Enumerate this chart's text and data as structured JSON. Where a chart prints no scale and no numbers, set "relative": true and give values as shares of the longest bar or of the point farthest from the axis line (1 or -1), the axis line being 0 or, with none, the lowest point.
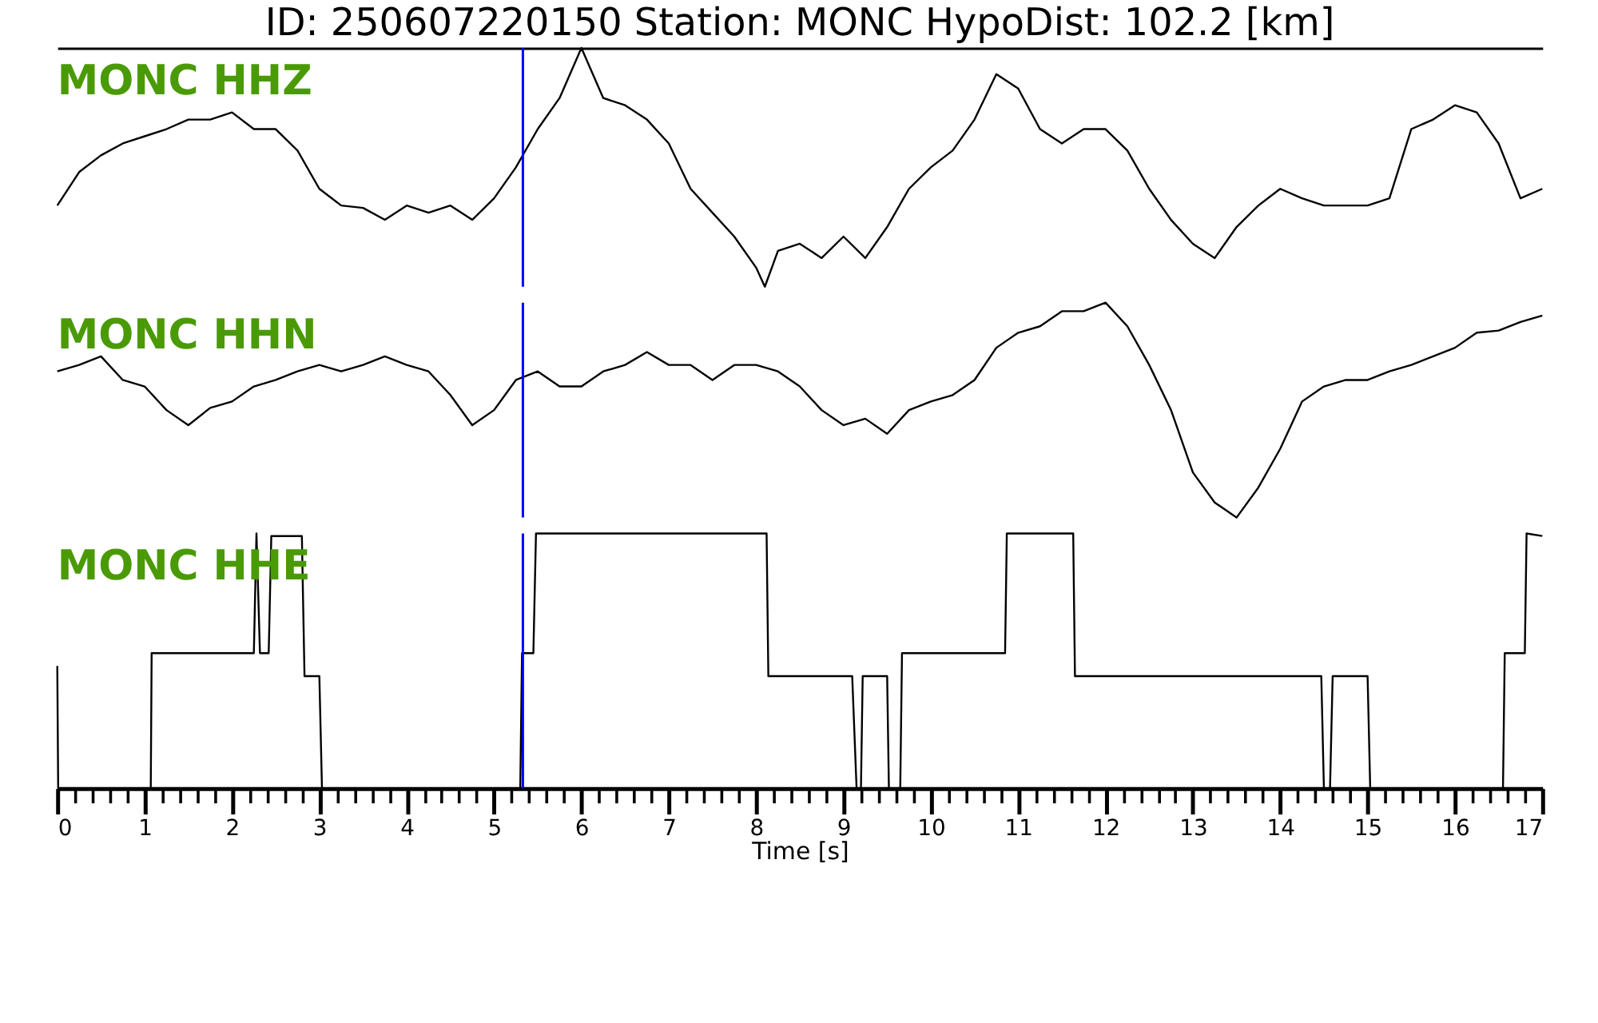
{
  "chart_data": [
    {
      "type": "line",
      "title": "ID: 250607220150   Station: MONC   HypoDist:   102.2 [km]",
      "relative": true,
      "xlim": [
        0,
        17
      ],
      "tick_labels": false,
      "grid": false,
      "series": [
        {
          "name": "MONC HHZ",
          "color": "#000000",
          "x": [
            0,
            0.25,
            0.5,
            0.75,
            1,
            1.25,
            1.5,
            1.75,
            2,
            2.25,
            2.5,
            2.75,
            3,
            3.25,
            3.5,
            3.75,
            4,
            4.25,
            4.5,
            4.75,
            5,
            5.25,
            5.5,
            5.75,
            6,
            6.25,
            6.5,
            6.75,
            7,
            7.25,
            7.5,
            7.75,
            8,
            8.1,
            8.25,
            8.5,
            8.75,
            9,
            9.25,
            9.5,
            9.75,
            10,
            10.25,
            10.5,
            10.75,
            11,
            11.25,
            11.5,
            11.75,
            12,
            12.25,
            12.5,
            12.75,
            13,
            13.25,
            13.5,
            13.75,
            14,
            14.25,
            14.5,
            14.75,
            15,
            15.25,
            15.5,
            15.75,
            16,
            16.25,
            16.5,
            16.75,
            17
          ],
          "values": [
            0.34,
            0.48,
            0.55,
            0.6,
            0.63,
            0.66,
            0.7,
            0.7,
            0.73,
            0.66,
            0.66,
            0.57,
            0.41,
            0.34,
            0.33,
            0.28,
            0.34,
            0.31,
            0.34,
            0.28,
            0.37,
            0.5,
            0.66,
            0.79,
            1.0,
            0.79,
            0.76,
            0.7,
            0.6,
            0.41,
            0.31,
            0.21,
            0.08,
            0,
            0.15,
            0.18,
            0.12,
            0.21,
            0.12,
            0.25,
            0.41,
            0.5,
            0.57,
            0.7,
            0.89,
            0.83,
            0.66,
            0.6,
            0.66,
            0.66,
            0.57,
            0.41,
            0.28,
            0.18,
            0.12,
            0.25,
            0.34,
            0.41,
            0.37,
            0.34,
            0.34,
            0.34,
            0.37,
            0.66,
            0.7,
            0.76,
            0.73,
            0.6,
            0.37,
            0.41
          ]
        }
      ],
      "ref_lines": [
        {
          "axis": "x",
          "value": 5.33,
          "color": "#0000ff"
        }
      ]
    },
    {
      "type": "line",
      "relative": true,
      "xlim": [
        0,
        17
      ],
      "tick_labels": false,
      "grid": false,
      "series": [
        {
          "name": "MONC HHN",
          "color": "#000000",
          "x": [
            0,
            0.25,
            0.5,
            0.75,
            1,
            1.25,
            1.5,
            1.75,
            2,
            2.25,
            2.5,
            2.75,
            3,
            3.25,
            3.5,
            3.75,
            4,
            4.25,
            4.5,
            4.75,
            5,
            5.25,
            5.5,
            5.75,
            6,
            6.25,
            6.5,
            6.75,
            7,
            7.25,
            7.5,
            7.75,
            8,
            8.25,
            8.5,
            8.75,
            9,
            9.25,
            9.5,
            9.75,
            10,
            10.25,
            10.5,
            10.75,
            11,
            11.25,
            11.5,
            11.75,
            12,
            12.25,
            12.5,
            12.75,
            13,
            13.25,
            13.5,
            13.75,
            14,
            14.25,
            14.5,
            14.75,
            15,
            15.25,
            15.5,
            15.75,
            16,
            16.25,
            16.5,
            16.75,
            17
          ],
          "values": [
            0.68,
            0.71,
            0.75,
            0.64,
            0.61,
            0.5,
            0.43,
            0.51,
            0.54,
            0.61,
            0.64,
            0.68,
            0.71,
            0.68,
            0.71,
            0.75,
            0.71,
            0.68,
            0.57,
            0.43,
            0.5,
            0.64,
            0.68,
            0.61,
            0.61,
            0.68,
            0.71,
            0.77,
            0.71,
            0.71,
            0.64,
            0.71,
            0.71,
            0.68,
            0.61,
            0.5,
            0.43,
            0.46,
            0.39,
            0.5,
            0.54,
            0.57,
            0.64,
            0.79,
            0.86,
            0.89,
            0.96,
            0.96,
            1.0,
            0.89,
            0.71,
            0.5,
            0.21,
            0.07,
            0,
            0.14,
            0.32,
            0.54,
            0.61,
            0.64,
            0.64,
            0.68,
            0.71,
            0.75,
            0.79,
            0.86,
            0.87,
            0.91,
            0.94
          ]
        }
      ],
      "ref_lines": [
        {
          "axis": "x",
          "value": 5.33,
          "color": "#0000ff"
        }
      ]
    },
    {
      "type": "line",
      "relative": true,
      "xlim": [
        0,
        17
      ],
      "tick_labels": "x",
      "grid": false,
      "xlabel": "Time [s]",
      "xticks": [
        0,
        {
          "value": 0.2,
          "label": null
        },
        {
          "value": 0.4,
          "label": null
        },
        {
          "value": 0.6,
          "label": null
        },
        {
          "value": 0.8,
          "label": null
        },
        1,
        {
          "value": 1.2,
          "label": null
        },
        {
          "value": 1.4,
          "label": null
        },
        {
          "value": 1.6,
          "label": null
        },
        {
          "value": 1.8,
          "label": null
        },
        2,
        {
          "value": 2.2,
          "label": null
        },
        {
          "value": 2.4,
          "label": null
        },
        {
          "value": 2.6,
          "label": null
        },
        {
          "value": 2.8,
          "label": null
        },
        3,
        {
          "value": 3.2,
          "label": null
        },
        {
          "value": 3.4,
          "label": null
        },
        {
          "value": 3.6,
          "label": null
        },
        {
          "value": 3.8,
          "label": null
        },
        4,
        {
          "value": 4.2,
          "label": null
        },
        {
          "value": 4.4,
          "label": null
        },
        {
          "value": 4.6,
          "label": null
        },
        {
          "value": 4.8,
          "label": null
        },
        5,
        {
          "value": 5.2,
          "label": null
        },
        {
          "value": 5.4,
          "label": null
        },
        {
          "value": 5.6,
          "label": null
        },
        {
          "value": 5.8,
          "label": null
        },
        6,
        {
          "value": 6.2,
          "label": null
        },
        {
          "value": 6.4,
          "label": null
        },
        {
          "value": 6.6,
          "label": null
        },
        {
          "value": 6.8,
          "label": null
        },
        7,
        {
          "value": 7.2,
          "label": null
        },
        {
          "value": 7.4,
          "label": null
        },
        {
          "value": 7.6,
          "label": null
        },
        {
          "value": 7.8,
          "label": null
        },
        8,
        {
          "value": 8.2,
          "label": null
        },
        {
          "value": 8.4,
          "label": null
        },
        {
          "value": 8.6,
          "label": null
        },
        {
          "value": 8.8,
          "label": null
        },
        9,
        {
          "value": 9.2,
          "label": null
        },
        {
          "value": 9.4,
          "label": null
        },
        {
          "value": 9.6,
          "label": null
        },
        {
          "value": 9.8,
          "label": null
        },
        10,
        {
          "value": 10.2,
          "label": null
        },
        {
          "value": 10.4,
          "label": null
        },
        {
          "value": 10.6,
          "label": null
        },
        {
          "value": 10.8,
          "label": null
        },
        11,
        {
          "value": 11.2,
          "label": null
        },
        {
          "value": 11.4,
          "label": null
        },
        {
          "value": 11.6,
          "label": null
        },
        {
          "value": 11.8,
          "label": null
        },
        12,
        {
          "value": 12.2,
          "label": null
        },
        {
          "value": 12.4,
          "label": null
        },
        {
          "value": 12.6,
          "label": null
        },
        {
          "value": 12.8,
          "label": null
        },
        13,
        {
          "value": 13.2,
          "label": null
        },
        {
          "value": 13.4,
          "label": null
        },
        {
          "value": 13.6,
          "label": null
        },
        {
          "value": 13.8,
          "label": null
        },
        14,
        {
          "value": 14.2,
          "label": null
        },
        {
          "value": 14.4,
          "label": null
        },
        {
          "value": 14.6,
          "label": null
        },
        {
          "value": 14.8,
          "label": null
        },
        15,
        {
          "value": 15.2,
          "label": null
        },
        {
          "value": 15.4,
          "label": null
        },
        {
          "value": 15.6,
          "label": null
        },
        {
          "value": 15.8,
          "label": null
        },
        16,
        {
          "value": 16.2,
          "label": null
        },
        {
          "value": 16.4,
          "label": null
        },
        {
          "value": 16.6,
          "label": null
        },
        {
          "value": 16.8,
          "label": null
        },
        17
      ],
      "series": [
        {
          "name": "MONC HHE",
          "color": "#000000",
          "x": [
            0,
            0.01,
            1.07,
            1.08,
            2.25,
            2.28,
            2.32,
            2.42,
            2.45,
            2.8,
            2.83,
            3.0,
            3.03,
            5.3,
            5.32,
            5.45,
            5.48,
            8.12,
            8.14,
            9.1,
            9.15,
            9.2,
            9.22,
            9.5,
            9.52,
            9.65,
            9.67,
            10.85,
            10.87,
            11.63,
            11.65,
            14.47,
            14.5,
            14.57,
            14.6,
            15.0,
            15.03,
            16.55,
            16.57,
            16.8,
            16.82,
            17.0
          ],
          "values": [
            0.48,
            0,
            0,
            0.53,
            0.53,
            1.0,
            0.53,
            0.53,
            0.99,
            0.99,
            0.44,
            0.44,
            0,
            0,
            0.53,
            0.53,
            1.0,
            1.0,
            0.44,
            0.44,
            0,
            0,
            0.44,
            0.44,
            0,
            0,
            0.53,
            0.53,
            1.0,
            1.0,
            0.44,
            0.44,
            0,
            0,
            0.44,
            0.44,
            0,
            0,
            0.53,
            0.53,
            1.0,
            0.99
          ]
        }
      ],
      "ref_lines": [
        {
          "axis": "x",
          "value": 5.33,
          "color": "#0000ff"
        }
      ]
    }
  ]
}
